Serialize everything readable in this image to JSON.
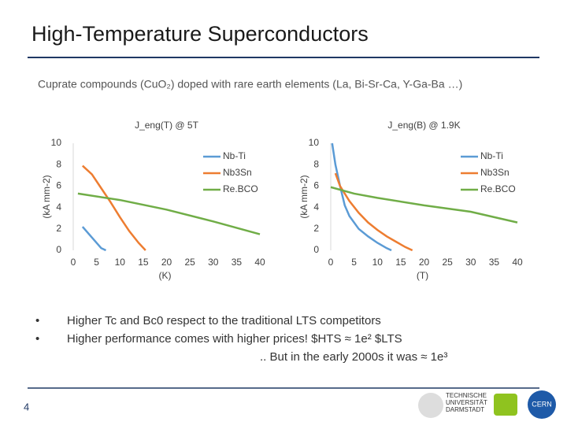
{
  "title": "High-Temperature Superconductors",
  "subtitle": "Cuprate compounds (CuO₂) doped with rare earth elements (La, Bi-Sr-Ca, Y-Ga-Ba …)",
  "bullets": [
    "Higher Tc and Bc0 respect to the traditional LTS competitors",
    "Higher performance comes with higher prices! $HTS ≈ 1e² $LTS"
  ],
  "note": ".. But in the early 2000s it was ≈ 1e³",
  "page_number": "4",
  "logo_text": [
    "TECHNISCHE",
    "UNIVERSITÄT",
    "DARMSTADT",
    "CERN"
  ],
  "chart_data": [
    {
      "type": "line",
      "title": "J_eng(T) @ 5T",
      "x_label": "(K)",
      "y_label": "(kA mm-2)",
      "xlim": [
        0,
        40
      ],
      "xticks": [
        0,
        5,
        10,
        15,
        20,
        25,
        30,
        35,
        40
      ],
      "ylim": [
        0,
        10
      ],
      "yticks": [
        0,
        2,
        4,
        6,
        8,
        10
      ],
      "grid": false,
      "legend": "upper right",
      "series": [
        {
          "name": "Nb-Ti",
          "color": "#5b9bd5",
          "x": [
            2,
            4,
            6,
            7
          ],
          "values": [
            2.2,
            1.2,
            0.2,
            0
          ]
        },
        {
          "name": "Nb3Sn",
          "color": "#ed7d31",
          "x": [
            2,
            4,
            6,
            8,
            10,
            12,
            14,
            15.5
          ],
          "values": [
            7.9,
            7.1,
            5.8,
            4.5,
            3.1,
            1.8,
            0.7,
            0
          ]
        },
        {
          "name": "Re.BCO",
          "color": "#70ad47",
          "x": [
            1,
            10,
            20,
            30,
            40
          ],
          "values": [
            5.3,
            4.7,
            3.8,
            2.7,
            1.5
          ]
        }
      ]
    },
    {
      "type": "line",
      "title": "J_eng(B) @ 1.9K",
      "x_label": "(T)",
      "y_label": "(kA mm-2)",
      "xlim": [
        0,
        40
      ],
      "xticks": [
        0,
        5,
        10,
        15,
        20,
        25,
        30,
        35,
        40
      ],
      "ylim": [
        0,
        10
      ],
      "yticks": [
        0,
        2,
        4,
        6,
        8,
        10
      ],
      "grid": false,
      "legend": "upper right",
      "series": [
        {
          "name": "Nb-Ti",
          "color": "#5b9bd5",
          "x": [
            0.3,
            1,
            2,
            3,
            4,
            6,
            8,
            10,
            12,
            13
          ],
          "values": [
            10,
            8,
            6,
            4.2,
            3.2,
            2,
            1.3,
            0.7,
            0.2,
            0
          ]
        },
        {
          "name": "Nb3Sn",
          "color": "#ed7d31",
          "x": [
            1,
            2,
            4,
            6,
            8,
            10,
            12,
            14,
            16,
            17.5
          ],
          "values": [
            7.2,
            6,
            4.6,
            3.5,
            2.6,
            1.9,
            1.3,
            0.8,
            0.3,
            0
          ]
        },
        {
          "name": "Re.BCO",
          "color": "#70ad47",
          "x": [
            0,
            5,
            10,
            20,
            30,
            40
          ],
          "values": [
            5.9,
            5.3,
            4.9,
            4.2,
            3.6,
            2.6
          ]
        }
      ]
    }
  ]
}
